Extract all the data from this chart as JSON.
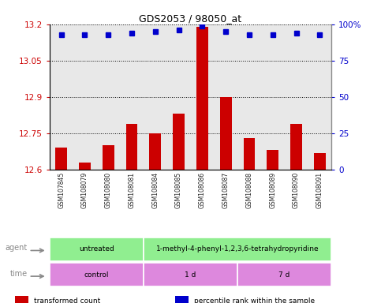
{
  "title": "GDS2053 / 98050_at",
  "samples": [
    "GSM107845",
    "GSM108079",
    "GSM108080",
    "GSM108081",
    "GSM108084",
    "GSM108085",
    "GSM108086",
    "GSM108087",
    "GSM108088",
    "GSM108089",
    "GSM108090",
    "GSM108091"
  ],
  "bar_values": [
    12.69,
    12.63,
    12.7,
    12.79,
    12.75,
    12.83,
    13.19,
    12.9,
    12.73,
    12.68,
    12.79,
    12.67
  ],
  "bar_bottom": 12.6,
  "dot_values": [
    93,
    93,
    93,
    94,
    95,
    96,
    99,
    95,
    93,
    93,
    94,
    93
  ],
  "ylim_left": [
    12.6,
    13.2
  ],
  "ylim_right": [
    0,
    100
  ],
  "yticks_left": [
    12.6,
    12.75,
    12.9,
    13.05,
    13.2
  ],
  "yticks_right": [
    0,
    25,
    50,
    75,
    100
  ],
  "ytick_labels_left": [
    "12.6",
    "12.75",
    "12.9",
    "13.05",
    "13.2"
  ],
  "ytick_labels_right": [
    "0",
    "25",
    "50",
    "75",
    "100%"
  ],
  "bar_color": "#cc0000",
  "dot_color": "#0000cc",
  "background_color": "#ffffff",
  "plot_bg_color": "#e8e8e8",
  "xticklabel_bg": "#d0d0d0",
  "agent_untreated_color": "#90ee90",
  "agent_mptp_color": "#90ee90",
  "time_control_color": "#dd88dd",
  "time_1d_color": "#dd88dd",
  "time_7d_color": "#dd88dd",
  "label_color": "#888888",
  "left_axis_color": "#cc0000",
  "right_axis_color": "#0000cc",
  "legend_items": [
    {
      "color": "#cc0000",
      "label": "transformed count"
    },
    {
      "color": "#0000cc",
      "label": "percentile rank within the sample"
    }
  ]
}
